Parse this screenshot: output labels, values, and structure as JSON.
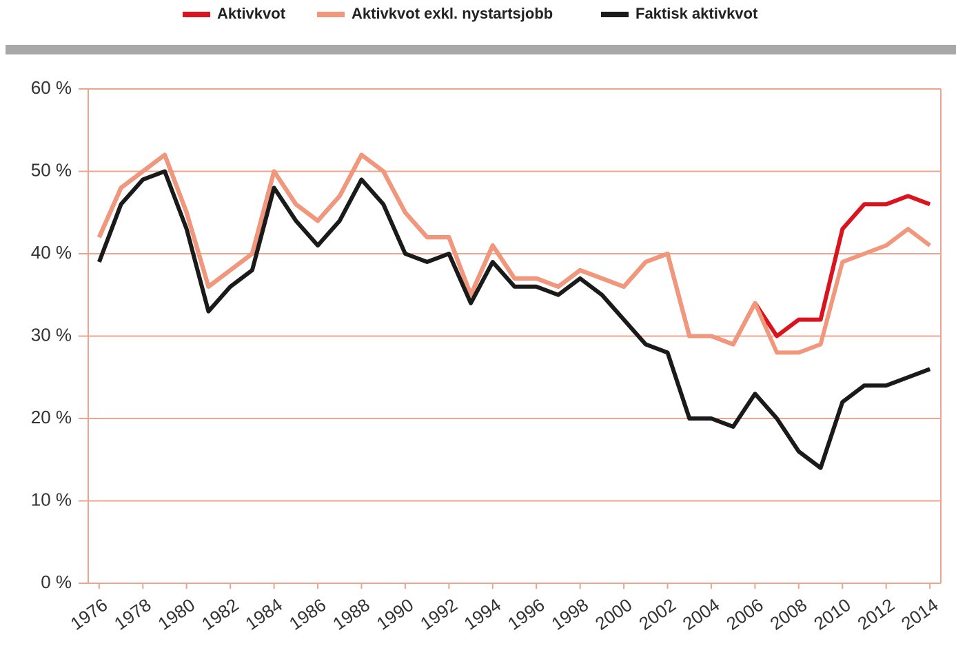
{
  "chart_data": {
    "type": "line",
    "x": [
      1976,
      1977,
      1978,
      1979,
      1980,
      1981,
      1982,
      1983,
      1984,
      1985,
      1986,
      1987,
      1988,
      1989,
      1990,
      1991,
      1992,
      1993,
      1994,
      1995,
      1996,
      1997,
      1998,
      1999,
      2000,
      2001,
      2002,
      2003,
      2004,
      2005,
      2006,
      2007,
      2008,
      2009,
      2010,
      2011,
      2012,
      2013,
      2014
    ],
    "series": [
      {
        "name": "Aktivkvot",
        "color": "#d9141e",
        "values": [
          42,
          48,
          50,
          52,
          45,
          36,
          38,
          40,
          50,
          46,
          44,
          47,
          52,
          50,
          45,
          42,
          42,
          35,
          41,
          37,
          37,
          36,
          38,
          37,
          36,
          39,
          40,
          30,
          30,
          29,
          34,
          30,
          32,
          32,
          43,
          46,
          46,
          47,
          46
        ]
      },
      {
        "name": "Aktivkvot exkl. nystartsjobb",
        "color": "#f0977c",
        "values": [
          42,
          48,
          50,
          52,
          45,
          36,
          38,
          40,
          50,
          46,
          44,
          47,
          52,
          50,
          45,
          42,
          42,
          35,
          41,
          37,
          37,
          36,
          38,
          37,
          36,
          39,
          40,
          30,
          30,
          29,
          34,
          28,
          28,
          29,
          39,
          40,
          41,
          43,
          41
        ]
      },
      {
        "name": "Faktisk aktivkvot",
        "color": "#1a1a1a",
        "values": [
          39,
          46,
          49,
          50,
          43,
          33,
          36,
          38,
          48,
          44,
          41,
          44,
          49,
          46,
          40,
          39,
          40,
          34,
          39,
          36,
          36,
          35,
          37,
          35,
          32,
          29,
          28,
          20,
          20,
          19,
          23,
          20,
          16,
          14,
          22,
          24,
          24,
          25,
          26
        ]
      }
    ],
    "xlim": [
      1975.5,
      2014.5
    ],
    "xticks": [
      1976,
      1978,
      1980,
      1982,
      1984,
      1986,
      1988,
      1990,
      1992,
      1994,
      1996,
      1998,
      2000,
      2002,
      2004,
      2006,
      2008,
      2010,
      2012,
      2014
    ],
    "ylim": [
      0,
      60
    ],
    "yticks": [
      {
        "value": 0,
        "label": "0 %"
      },
      {
        "value": 10,
        "label": "10 %"
      },
      {
        "value": 20,
        "label": "20 %"
      },
      {
        "value": 30,
        "label": "30 %"
      },
      {
        "value": 40,
        "label": "40 %"
      },
      {
        "value": 50,
        "label": "50 %"
      },
      {
        "value": 60,
        "label": "60 %"
      }
    ],
    "grid": true,
    "legend": "top"
  }
}
